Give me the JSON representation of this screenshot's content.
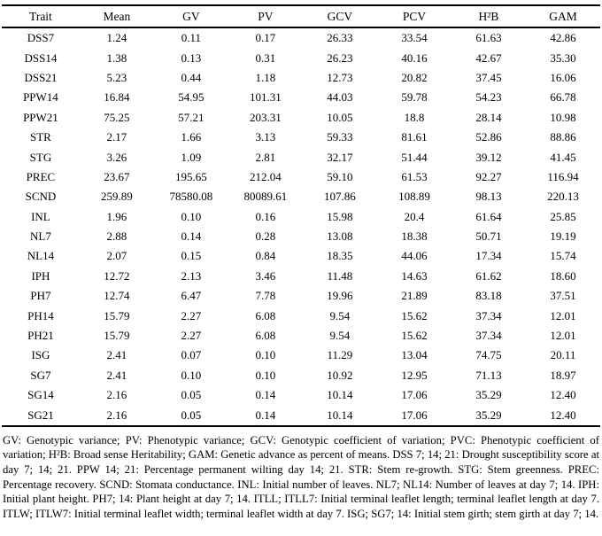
{
  "table": {
    "columns": [
      "Trait",
      "Mean",
      "GV",
      "PV",
      "GCV",
      "PCV",
      "H²B",
      "GAM"
    ],
    "rows": [
      {
        "trait": "DSS7",
        "values": [
          "1.24",
          "0.11",
          "0.17",
          "26.33",
          "33.54",
          "61.63",
          "42.86"
        ]
      },
      {
        "trait": "DSS14",
        "values": [
          "1.38",
          "0.13",
          "0.31",
          "26.23",
          "40.16",
          "42.67",
          "35.30"
        ]
      },
      {
        "trait": "DSS21",
        "values": [
          "5.23",
          "0.44",
          "1.18",
          "12.73",
          "20.82",
          "37.45",
          "16.06"
        ]
      },
      {
        "trait": "PPW14",
        "values": [
          "16.84",
          "54.95",
          "101.31",
          "44.03",
          "59.78",
          "54.23",
          "66.78"
        ]
      },
      {
        "trait": "PPW21",
        "values": [
          "75.25",
          "57.21",
          "203.31",
          "10.05",
          "18.8",
          "28.14",
          "10.98"
        ]
      },
      {
        "trait": "STR",
        "values": [
          "2.17",
          "1.66",
          "3.13",
          "59.33",
          "81.61",
          "52.86",
          "88.86"
        ]
      },
      {
        "trait": "STG",
        "values": [
          "3.26",
          "1.09",
          "2.81",
          "32.17",
          "51.44",
          "39.12",
          "41.45"
        ]
      },
      {
        "trait": "PREC",
        "values": [
          "23.67",
          "195.65",
          "212.04",
          "59.10",
          "61.53",
          "92.27",
          "116.94"
        ]
      },
      {
        "trait": "SCND",
        "values": [
          "259.89",
          "78580.08",
          "80089.61",
          "107.86",
          "108.89",
          "98.13",
          "220.13"
        ]
      },
      {
        "trait": "INL",
        "values": [
          "1.96",
          "0.10",
          "0.16",
          "15.98",
          "20.4",
          "61.64",
          "25.85"
        ]
      },
      {
        "trait": "NL7",
        "values": [
          "2.88",
          "0.14",
          "0.28",
          "13.08",
          "18.38",
          "50.71",
          "19.19"
        ]
      },
      {
        "trait": "NL14",
        "values": [
          "2.07",
          "0.15",
          "0.84",
          "18.35",
          "44.06",
          "17.34",
          "15.74"
        ]
      },
      {
        "trait": "IPH",
        "values": [
          "12.72",
          "2.13",
          "3.46",
          "11.48",
          "14.63",
          "61.62",
          "18.60"
        ]
      },
      {
        "trait": "PH7",
        "values": [
          "12.74",
          "6.47",
          "7.78",
          "19.96",
          "21.89",
          "83.18",
          "37.51"
        ]
      },
      {
        "trait": "PH14",
        "values": [
          "15.79",
          "2.27",
          "6.08",
          "9.54",
          "15.62",
          "37.34",
          "12.01"
        ]
      },
      {
        "trait": "PH21",
        "values": [
          "15.79",
          "2.27",
          "6.08",
          "9.54",
          "15.62",
          "37.34",
          "12.01"
        ]
      },
      {
        "trait": "ISG",
        "values": [
          "2.41",
          "0.07",
          "0.10",
          "11.29",
          "13.04",
          "74.75",
          "20.11"
        ]
      },
      {
        "trait": "SG7",
        "values": [
          "2.41",
          "0.10",
          "0.10",
          "10.92",
          "12.95",
          "71.13",
          "18.97"
        ]
      },
      {
        "trait": "SG14",
        "values": [
          "2.16",
          "0.05",
          "0.14",
          "10.14",
          "17.06",
          "35.29",
          "12.40"
        ]
      },
      {
        "trait": "SG21",
        "values": [
          "2.16",
          "0.05",
          "0.14",
          "10.14",
          "17.06",
          "35.29",
          "12.40"
        ]
      }
    ]
  },
  "footnote": "GV: Genotypic variance; PV: Phenotypic variance; GCV: Genotypic coefficient of variation; PVC: Phenotypic coefficient of variation; H²B: Broad sense Heritability; GAM: Genetic advance as percent of means. DSS 7; 14; 21: Drought susceptibility score at day 7; 14; 21. PPW 14; 21: Percentage permanent wilting day 14; 21. STR: Stem re-growth. STG: Stem greenness. PREC: Percentage recovery. SCND: Stomata conductance. INL: Initial number of leaves. NL7; NL14: Number of leaves at day 7; 14. IPH: Initial plant height. PH7; 14: Plant height at day 7; 14. ITLL; ITLL7: Initial terminal leaflet length; terminal leaflet length at day 7. ITLW; ITLW7: Initial terminal leaflet width; terminal leaflet width at day 7. ISG; SG7; 14: Initial stem girth; stem girth at day 7; 14."
}
